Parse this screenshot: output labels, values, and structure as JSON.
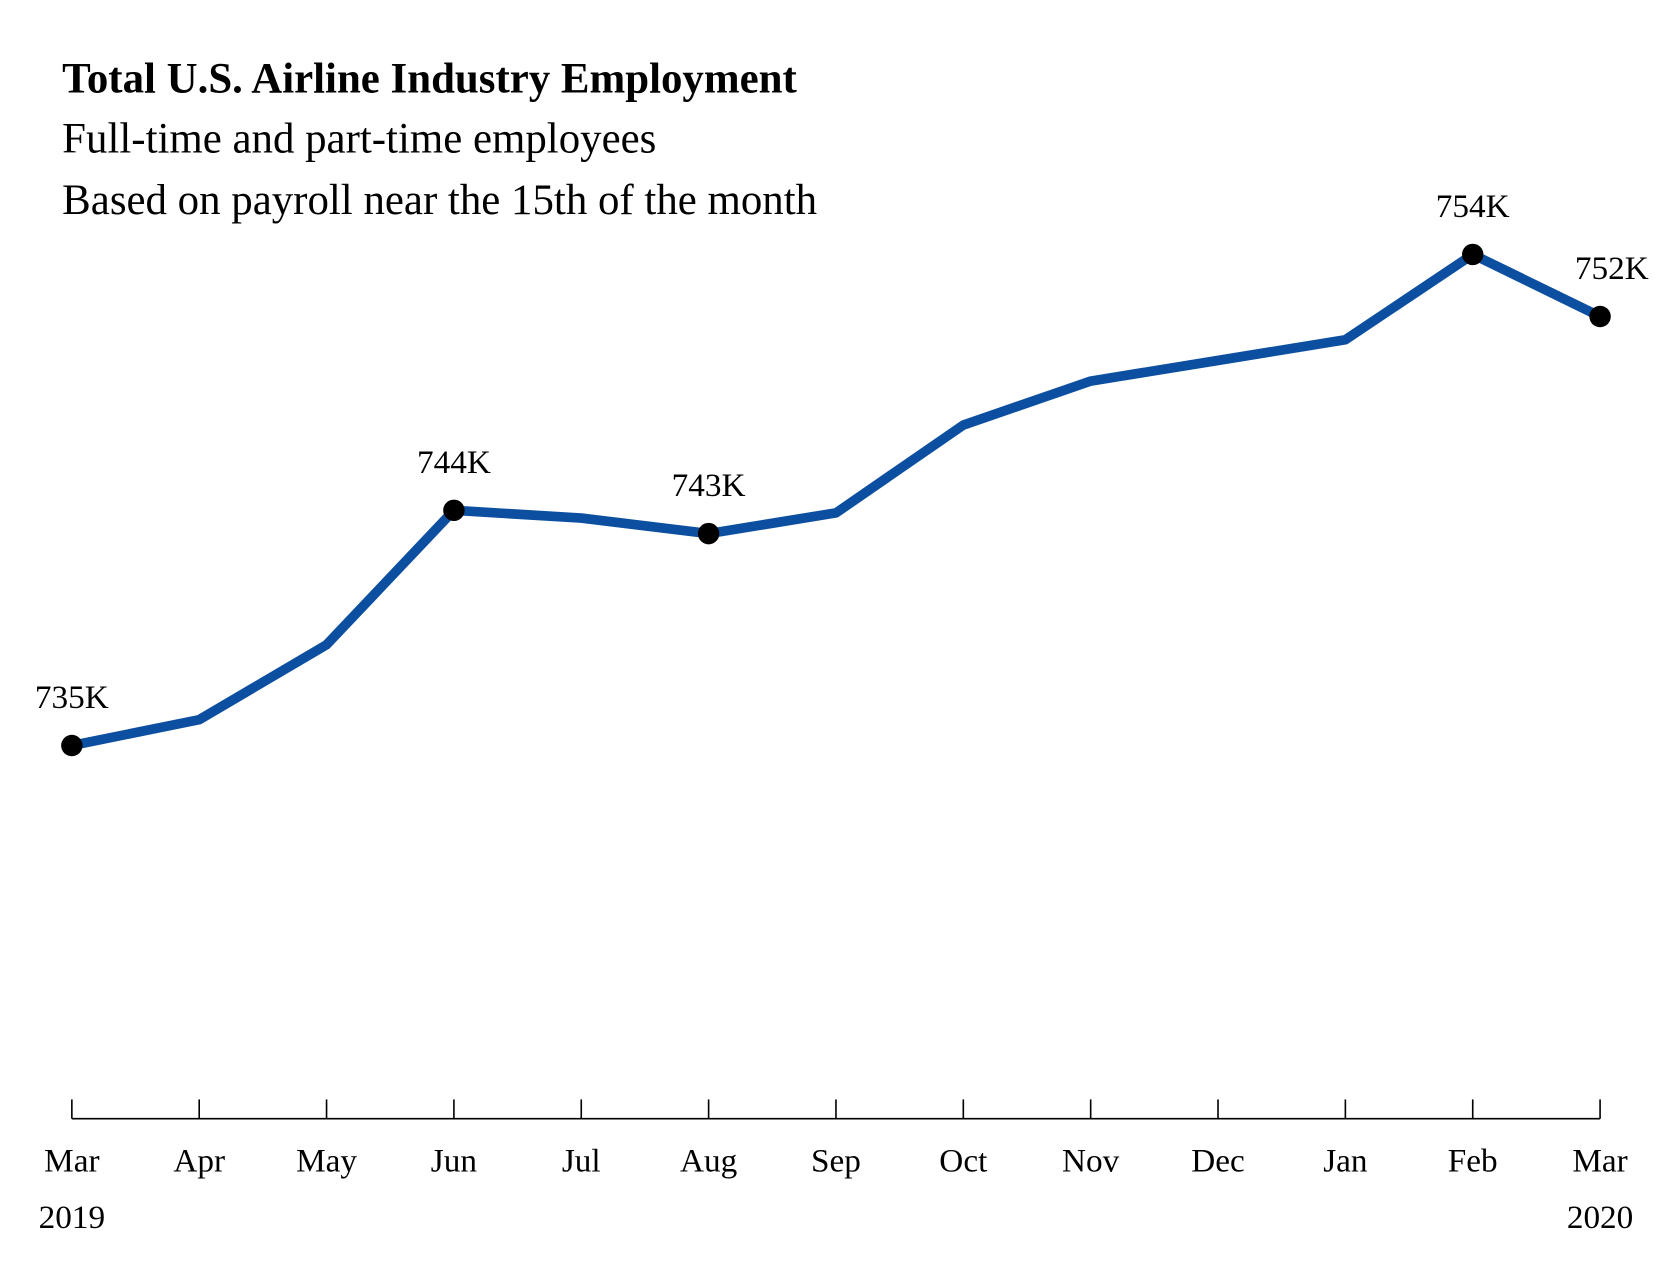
{
  "chart_data": {
    "type": "line",
    "title": "Total U.S. Airline Industry Employment",
    "subtitle": [
      "Full-time and part-time employees",
      "Based on payroll near the 15th of the month"
    ],
    "categories": [
      [
        "Mar",
        "2019"
      ],
      [
        "Apr"
      ],
      [
        "May"
      ],
      [
        "Jun"
      ],
      [
        "Jul"
      ],
      [
        "Aug"
      ],
      [
        "Sep"
      ],
      [
        "Oct"
      ],
      [
        "Nov"
      ],
      [
        "Dec"
      ],
      [
        "Jan"
      ],
      [
        "Feb"
      ],
      [
        "Mar",
        "2020"
      ]
    ],
    "values": [
      735.0,
      736.0,
      738.9,
      744.1,
      743.8,
      743.2,
      744.0,
      747.4,
      749.1,
      749.9,
      750.7,
      754.0,
      751.6
    ],
    "value_labels": [
      "735K",
      null,
      null,
      "744K",
      null,
      "743K",
      null,
      null,
      null,
      null,
      null,
      "754K",
      "752K"
    ],
    "color": "#0c4fa0",
    "marker_color": "#000000",
    "ylim": [
      720,
      760
    ]
  }
}
